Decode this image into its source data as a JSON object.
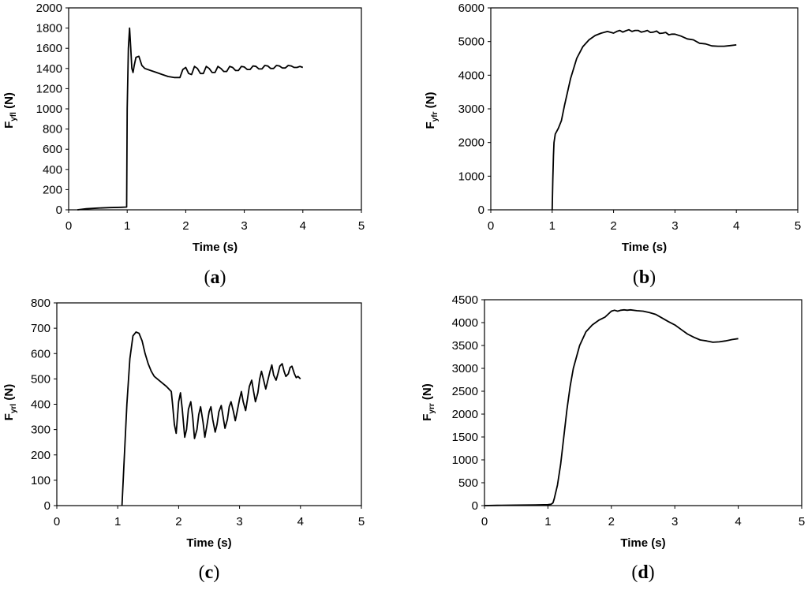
{
  "chart_data": [
    {
      "type": "line",
      "panel": "a",
      "xlabel": "Time (s)",
      "ylabel_main": "F",
      "ylabel_sub": "yfl",
      "ylabel_unit": " (N)",
      "xlim": [
        0,
        5
      ],
      "ylim": [
        0,
        2000
      ],
      "xticks": [
        0,
        1,
        2,
        3,
        4,
        5
      ],
      "yticks": [
        0,
        200,
        400,
        600,
        800,
        1000,
        1200,
        1400,
        1600,
        1800,
        2000
      ],
      "series": [
        {
          "x": [
            0.15,
            0.3,
            0.5,
            0.7,
            0.9,
            0.99,
            1.0,
            1.02,
            1.04,
            1.06,
            1.08,
            1.1,
            1.12,
            1.15,
            1.2,
            1.25,
            1.3,
            1.4,
            1.5,
            1.6,
            1.7,
            1.8,
            1.9,
            1.95,
            2.0,
            2.05,
            2.1,
            2.15,
            2.2,
            2.25,
            2.3,
            2.35,
            2.4,
            2.45,
            2.5,
            2.55,
            2.6,
            2.65,
            2.7,
            2.75,
            2.8,
            2.85,
            2.9,
            2.95,
            3.0,
            3.05,
            3.1,
            3.15,
            3.2,
            3.25,
            3.3,
            3.35,
            3.4,
            3.45,
            3.5,
            3.55,
            3.6,
            3.65,
            3.7,
            3.75,
            3.8,
            3.85,
            3.9,
            3.95,
            4.0
          ],
          "y": [
            0,
            10,
            17,
            22,
            25,
            27,
            1000,
            1600,
            1800,
            1600,
            1400,
            1360,
            1430,
            1510,
            1520,
            1430,
            1400,
            1380,
            1360,
            1340,
            1320,
            1310,
            1310,
            1390,
            1410,
            1350,
            1340,
            1420,
            1400,
            1350,
            1350,
            1420,
            1400,
            1360,
            1360,
            1420,
            1400,
            1370,
            1370,
            1420,
            1410,
            1380,
            1380,
            1420,
            1415,
            1390,
            1390,
            1425,
            1420,
            1395,
            1395,
            1430,
            1425,
            1400,
            1400,
            1430,
            1425,
            1405,
            1405,
            1430,
            1425,
            1410,
            1410,
            1420,
            1410
          ]
        }
      ]
    },
    {
      "type": "line",
      "panel": "b",
      "xlabel": "Time (s)",
      "ylabel_main": "F",
      "ylabel_sub": "yfr",
      "ylabel_unit": " (N)",
      "xlim": [
        0,
        5
      ],
      "ylim": [
        0,
        6000
      ],
      "xticks": [
        0,
        1,
        2,
        3,
        4,
        5
      ],
      "yticks": [
        0,
        1000,
        2000,
        3000,
        4000,
        5000,
        6000
      ],
      "series": [
        {
          "x": [
            1.0,
            1.01,
            1.02,
            1.03,
            1.05,
            1.08,
            1.1,
            1.15,
            1.2,
            1.3,
            1.4,
            1.5,
            1.6,
            1.7,
            1.8,
            1.9,
            2.0,
            2.05,
            2.1,
            2.15,
            2.2,
            2.25,
            2.3,
            2.35,
            2.4,
            2.45,
            2.5,
            2.55,
            2.6,
            2.65,
            2.7,
            2.75,
            2.8,
            2.85,
            2.9,
            2.95,
            3.0,
            3.1,
            3.2,
            3.3,
            3.4,
            3.5,
            3.6,
            3.7,
            3.8,
            3.9,
            4.0
          ],
          "y": [
            0,
            900,
            1600,
            2000,
            2250,
            2350,
            2420,
            2650,
            3100,
            3900,
            4500,
            4850,
            5050,
            5180,
            5250,
            5300,
            5250,
            5300,
            5330,
            5280,
            5320,
            5350,
            5300,
            5330,
            5330,
            5280,
            5300,
            5330,
            5270,
            5280,
            5310,
            5240,
            5250,
            5270,
            5200,
            5220,
            5220,
            5160,
            5080,
            5050,
            4950,
            4930,
            4870,
            4860,
            4860,
            4880,
            4900
          ]
        }
      ]
    },
    {
      "type": "line",
      "panel": "c",
      "xlabel": "Time (s)",
      "ylabel_main": "F",
      "ylabel_sub": "yrl",
      "ylabel_unit": " (N)",
      "xlim": [
        0,
        5
      ],
      "ylim": [
        0,
        800
      ],
      "xticks": [
        0,
        1,
        2,
        3,
        4,
        5
      ],
      "yticks": [
        0,
        100,
        200,
        300,
        400,
        500,
        600,
        700,
        800
      ],
      "series": [
        {
          "x": [
            1.07,
            1.1,
            1.15,
            1.2,
            1.25,
            1.3,
            1.35,
            1.4,
            1.45,
            1.5,
            1.55,
            1.6,
            1.7,
            1.8,
            1.88,
            1.9,
            1.93,
            1.96,
            2.0,
            2.03,
            2.06,
            2.1,
            2.13,
            2.16,
            2.2,
            2.23,
            2.26,
            2.3,
            2.33,
            2.36,
            2.4,
            2.43,
            2.46,
            2.5,
            2.53,
            2.56,
            2.6,
            2.63,
            2.66,
            2.7,
            2.73,
            2.76,
            2.8,
            2.83,
            2.86,
            2.9,
            2.93,
            2.96,
            3.0,
            3.03,
            3.06,
            3.1,
            3.13,
            3.16,
            3.2,
            3.23,
            3.26,
            3.3,
            3.33,
            3.36,
            3.4,
            3.43,
            3.46,
            3.5,
            3.53,
            3.56,
            3.6,
            3.63,
            3.66,
            3.7,
            3.73,
            3.76,
            3.8,
            3.83,
            3.86,
            3.9,
            3.93,
            3.96,
            4.0
          ],
          "y": [
            0,
            150,
            400,
            580,
            670,
            685,
            680,
            650,
            600,
            560,
            530,
            510,
            490,
            470,
            450,
            400,
            320,
            285,
            410,
            445,
            380,
            270,
            300,
            380,
            410,
            350,
            265,
            300,
            360,
            390,
            330,
            270,
            310,
            370,
            390,
            340,
            290,
            320,
            370,
            395,
            350,
            305,
            340,
            390,
            410,
            370,
            335,
            370,
            420,
            450,
            410,
            375,
            420,
            470,
            495,
            450,
            410,
            445,
            500,
            530,
            490,
            460,
            490,
            530,
            555,
            515,
            495,
            520,
            550,
            560,
            530,
            510,
            520,
            545,
            550,
            520,
            505,
            510,
            500
          ]
        }
      ]
    },
    {
      "type": "line",
      "panel": "d",
      "xlabel": "Time (s)",
      "ylabel_main": "F",
      "ylabel_sub": "yrr",
      "ylabel_unit": " (N)",
      "xlim": [
        0,
        5
      ],
      "ylim": [
        0,
        4500
      ],
      "xticks": [
        0,
        1,
        2,
        3,
        4,
        5
      ],
      "yticks": [
        0,
        500,
        1000,
        1500,
        2000,
        2500,
        3000,
        3500,
        4000,
        4500
      ],
      "series": [
        {
          "x": [
            0.0,
            0.2,
            0.5,
            0.8,
            1.0,
            1.05,
            1.08,
            1.1,
            1.15,
            1.2,
            1.25,
            1.3,
            1.35,
            1.4,
            1.5,
            1.6,
            1.7,
            1.8,
            1.9,
            2.0,
            2.05,
            2.1,
            2.15,
            2.2,
            2.25,
            2.3,
            2.4,
            2.5,
            2.6,
            2.7,
            2.8,
            2.9,
            3.0,
            3.1,
            3.2,
            3.3,
            3.4,
            3.5,
            3.6,
            3.7,
            3.8,
            3.9,
            4.0
          ],
          "y": [
            0,
            5,
            10,
            15,
            20,
            30,
            60,
            150,
            450,
            900,
            1500,
            2100,
            2600,
            3000,
            3500,
            3800,
            3950,
            4050,
            4120,
            4250,
            4270,
            4250,
            4270,
            4280,
            4270,
            4280,
            4260,
            4250,
            4220,
            4180,
            4100,
            4020,
            3950,
            3850,
            3750,
            3680,
            3620,
            3600,
            3570,
            3580,
            3600,
            3630,
            3650
          ]
        }
      ]
    }
  ]
}
